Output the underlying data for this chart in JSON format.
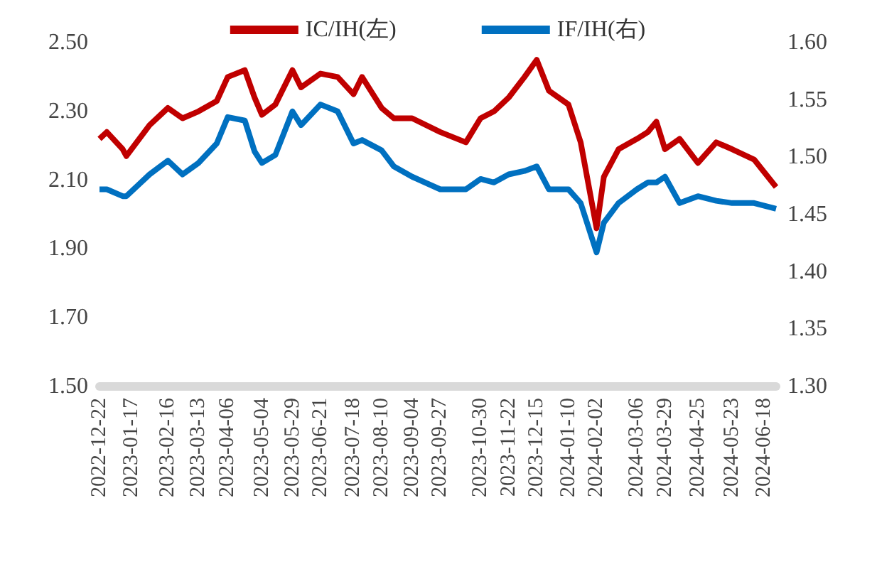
{
  "chart_data": {
    "type": "line",
    "x": [
      "2022-12-22",
      "2022-12-28",
      "2023-01-10",
      "2023-01-13",
      "2023-02-01",
      "2023-02-16",
      "2023-02-28",
      "2023-03-13",
      "2023-03-28",
      "2023-04-06",
      "2023-04-20",
      "2023-04-28",
      "2023-05-04",
      "2023-05-15",
      "2023-05-29",
      "2023-06-05",
      "2023-06-21",
      "2023-07-05",
      "2023-07-18",
      "2023-07-25",
      "2023-08-10",
      "2023-08-20",
      "2023-09-04",
      "2023-09-27",
      "2023-10-18",
      "2023-10-30",
      "2023-11-10",
      "2023-11-22",
      "2023-12-05",
      "2023-12-15",
      "2023-12-25",
      "2024-01-10",
      "2024-01-20",
      "2024-02-02",
      "2024-02-08",
      "2024-02-20",
      "2024-03-06",
      "2024-03-15",
      "2024-03-22",
      "2024-03-29",
      "2024-04-10",
      "2024-04-25",
      "2024-05-10",
      "2024-05-23",
      "2024-06-10",
      "2024-06-28"
    ],
    "series": [
      {
        "name": "IC/IH(左)",
        "color": "#c00000",
        "values": [
          2.22,
          2.24,
          2.19,
          2.17,
          2.26,
          2.31,
          2.28,
          2.3,
          2.33,
          2.4,
          2.42,
          2.34,
          2.29,
          2.32,
          2.42,
          2.37,
          2.41,
          2.4,
          2.35,
          2.4,
          2.31,
          2.28,
          2.28,
          2.24,
          2.21,
          2.28,
          2.3,
          2.34,
          2.4,
          2.45,
          2.36,
          2.32,
          2.21,
          1.96,
          2.11,
          2.19,
          2.22,
          2.24,
          2.27,
          2.19,
          2.22,
          2.15,
          2.21,
          2.19,
          2.16,
          2.08
        ]
      },
      {
        "name": "IF/IH(右)",
        "color": "#0070c0",
        "axis": "y2",
        "values": [
          1.472,
          1.472,
          1.466,
          1.466,
          1.485,
          1.497,
          1.485,
          1.495,
          1.512,
          1.535,
          1.532,
          1.505,
          1.495,
          1.502,
          1.54,
          1.528,
          1.546,
          1.54,
          1.512,
          1.515,
          1.506,
          1.492,
          1.483,
          1.472,
          1.472,
          1.481,
          1.478,
          1.485,
          1.488,
          1.492,
          1.472,
          1.472,
          1.46,
          1.417,
          1.443,
          1.46,
          1.472,
          1.478,
          1.478,
          1.483,
          1.46,
          1.466,
          1.462,
          1.46,
          1.46,
          1.455
        ]
      }
    ],
    "xticks": [
      "2022-12-22",
      "2023-01-17",
      "2023-02-16",
      "2023-03-13",
      "2023-04-06",
      "2023-05-04",
      "2023-05-29",
      "2023-06-21",
      "2023-07-18",
      "2023-08-10",
      "2023-09-04",
      "2023-09-27",
      "2023-10-30",
      "2023-11-22",
      "2023-12-15",
      "2024-01-10",
      "2024-02-02",
      "2024-03-06",
      "2024-03-29",
      "2024-04-25",
      "2024-05-23",
      "2024-06-18"
    ],
    "xlim": [
      "2022-12-22",
      "2024-06-28"
    ],
    "ylim": [
      1.5,
      2.5
    ],
    "yticks": [
      {
        "value": 1.5,
        "label": "1.50"
      },
      {
        "value": 1.7,
        "label": "1.70"
      },
      {
        "value": 1.9,
        "label": "1.90"
      },
      {
        "value": 2.1,
        "label": "2.10"
      },
      {
        "value": 2.3,
        "label": "2.30"
      },
      {
        "value": 2.5,
        "label": "2.50"
      }
    ],
    "y2lim": [
      1.3,
      1.6
    ],
    "y2ticks": [
      {
        "value": 1.3,
        "label": "1.30"
      },
      {
        "value": 1.35,
        "label": "1.35"
      },
      {
        "value": 1.4,
        "label": "1.40"
      },
      {
        "value": 1.45,
        "label": "1.45"
      },
      {
        "value": 1.5,
        "label": "1.50"
      },
      {
        "value": 1.55,
        "label": "1.55"
      },
      {
        "value": 1.6,
        "label": "1.60"
      }
    ],
    "legend": "top",
    "grid": false
  }
}
